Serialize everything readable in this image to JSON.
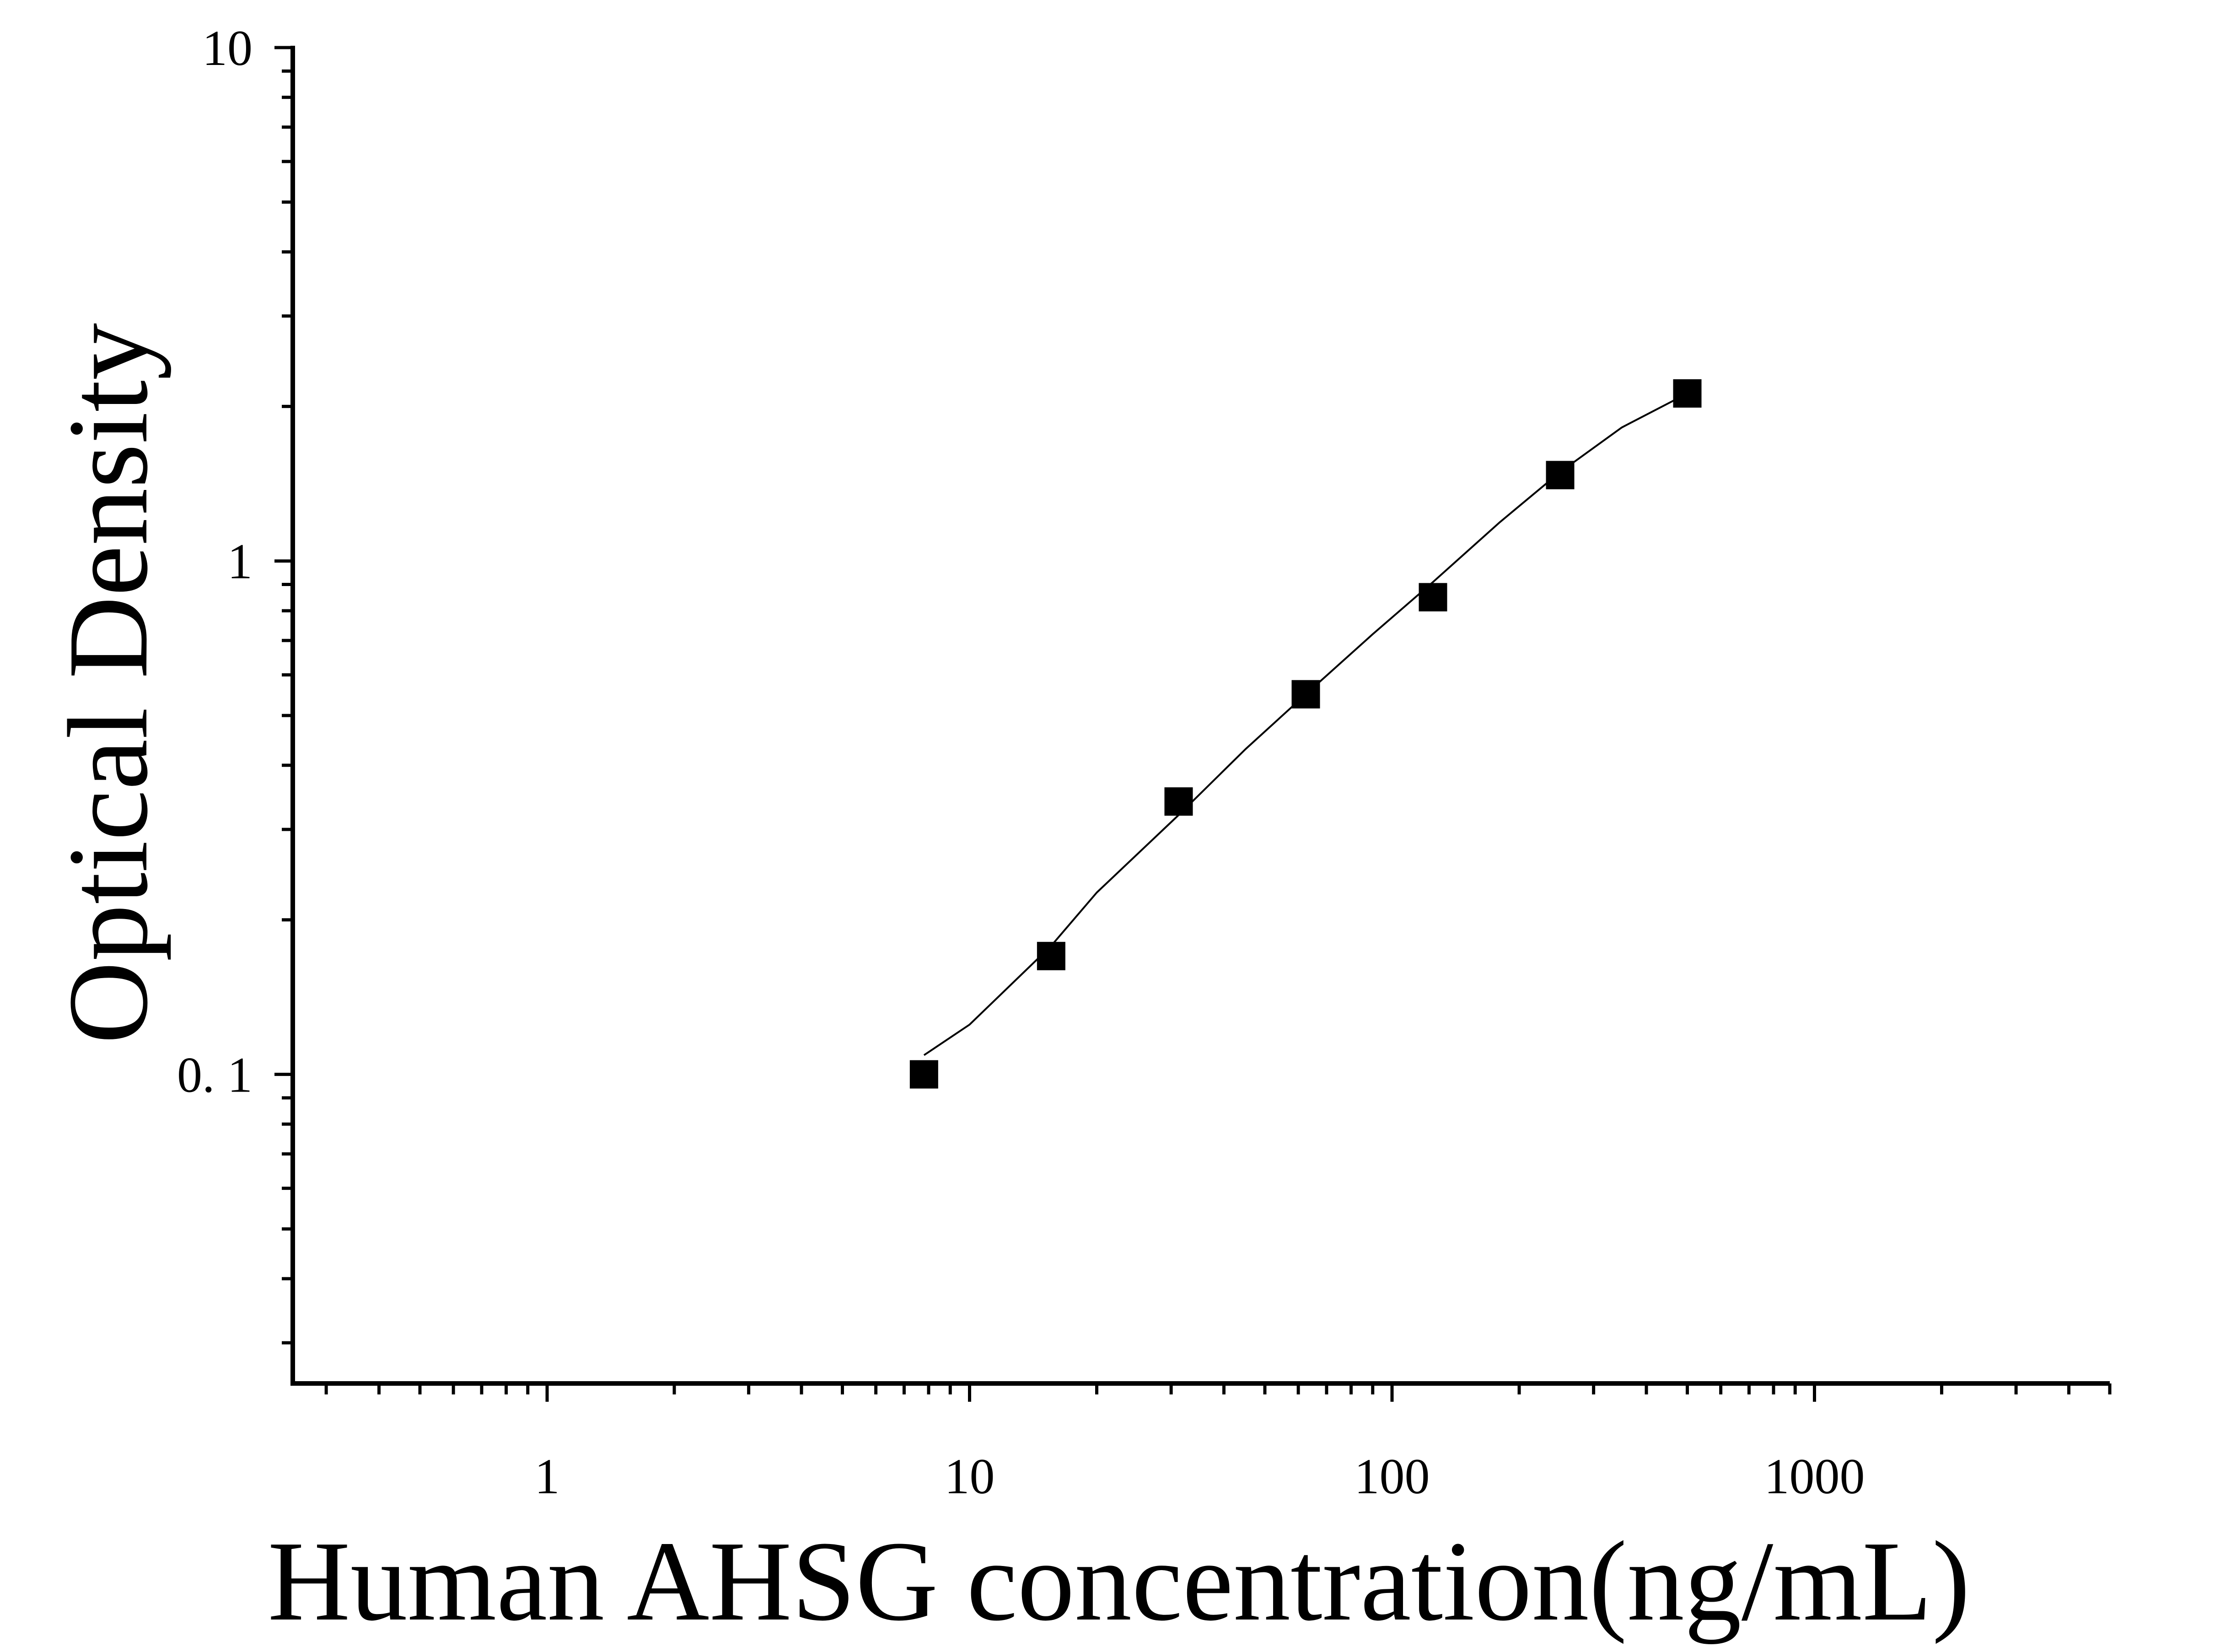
{
  "chart_data": {
    "type": "scatter",
    "xlabel": "Human AHSG concentration(ng/mL)",
    "ylabel": "Optical Density",
    "x_scale": "log",
    "y_scale": "log",
    "xlim": [
      0.25,
      5000
    ],
    "ylim": [
      0.025,
      10
    ],
    "x_ticks": [
      {
        "value": 1,
        "label": "1"
      },
      {
        "value": 10,
        "label": "10"
      },
      {
        "value": 100,
        "label": "100"
      },
      {
        "value": 1000,
        "label": "1000"
      }
    ],
    "y_ticks": [
      {
        "value": 0.1,
        "label": "0. 1"
      },
      {
        "value": 1,
        "label": "1"
      },
      {
        "value": 10,
        "label": "10"
      }
    ],
    "grid": false,
    "series": [
      {
        "marker": "square",
        "color": "#000000",
        "x": [
          7.8,
          15.6,
          31.25,
          62.5,
          125,
          250,
          500
        ],
        "y": [
          0.1,
          0.17,
          0.34,
          0.55,
          0.85,
          1.47,
          2.12
        ]
      }
    ],
    "fit_curve": {
      "color": "#000000",
      "x": [
        7.8,
        10,
        15.6,
        20,
        31.25,
        45,
        62.5,
        90,
        125,
        180,
        250,
        350,
        500
      ],
      "y": [
        0.109,
        0.125,
        0.178,
        0.226,
        0.32,
        0.43,
        0.55,
        0.72,
        0.91,
        1.19,
        1.49,
        1.82,
        2.12
      ]
    }
  }
}
